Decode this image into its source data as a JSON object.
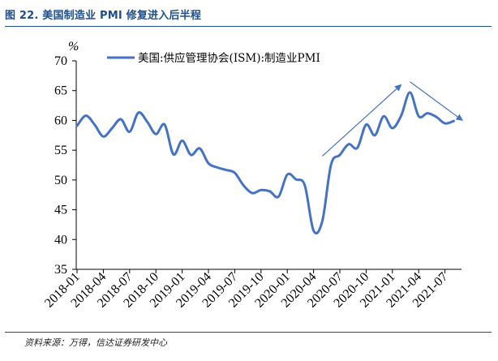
{
  "header": {
    "title": "图 22. 美国制造业 PMI 修复进入后半程"
  },
  "footer": {
    "source": "资料来源：万得，信达证券研发中心"
  },
  "chart_data": {
    "type": "line",
    "ylabel": "%",
    "ylim": [
      35,
      70
    ],
    "yticks": [
      35,
      40,
      45,
      50,
      55,
      60,
      65,
      70
    ],
    "grid": false,
    "legend_position": "top",
    "x_tick_labels": [
      "2018-01",
      "2018-04",
      "2018-07",
      "2018-10",
      "2019-01",
      "2019-04",
      "2019-07",
      "2019-10",
      "2020-01",
      "2020-04",
      "2020-07",
      "2020-10",
      "2021-01",
      "2021-04",
      "2021-07"
    ],
    "x": [
      "2018-01",
      "2018-02",
      "2018-03",
      "2018-04",
      "2018-05",
      "2018-06",
      "2018-07",
      "2018-08",
      "2018-09",
      "2018-10",
      "2018-11",
      "2018-12",
      "2019-01",
      "2019-02",
      "2019-03",
      "2019-04",
      "2019-05",
      "2019-06",
      "2019-07",
      "2019-08",
      "2019-09",
      "2019-10",
      "2019-11",
      "2019-12",
      "2020-01",
      "2020-02",
      "2020-03",
      "2020-04",
      "2020-05",
      "2020-06",
      "2020-07",
      "2020-08",
      "2020-09",
      "2020-10",
      "2020-11",
      "2020-12",
      "2021-01",
      "2021-02",
      "2021-03",
      "2021-04",
      "2021-05",
      "2021-06",
      "2021-07",
      "2021-08"
    ],
    "series": [
      {
        "name": "美国:供应管理协会(ISM):制造业PMI",
        "color": "#4472c4",
        "values": [
          59.1,
          60.8,
          59.3,
          57.3,
          58.7,
          60.2,
          58.1,
          61.3,
          59.8,
          57.7,
          59.3,
          54.3,
          56.6,
          54.2,
          55.3,
          52.8,
          52.1,
          51.7,
          51.2,
          49.1,
          47.8,
          48.3,
          48.1,
          47.2,
          50.9,
          50.1,
          49.1,
          41.5,
          43.1,
          52.6,
          54.2,
          56.0,
          55.4,
          59.3,
          57.5,
          60.7,
          58.7,
          60.8,
          64.7,
          60.7,
          61.2,
          60.6,
          59.5,
          59.9
        ]
      }
    ],
    "annotations": [
      {
        "type": "arrow",
        "color": "#4472c4",
        "from": [
          "2020-05",
          54
        ],
        "to": [
          "2021-02",
          66
        ]
      },
      {
        "type": "arrow",
        "color": "#4472c4",
        "from": [
          "2021-03",
          66.5
        ],
        "to": [
          "2021-09",
          60
        ]
      }
    ]
  }
}
